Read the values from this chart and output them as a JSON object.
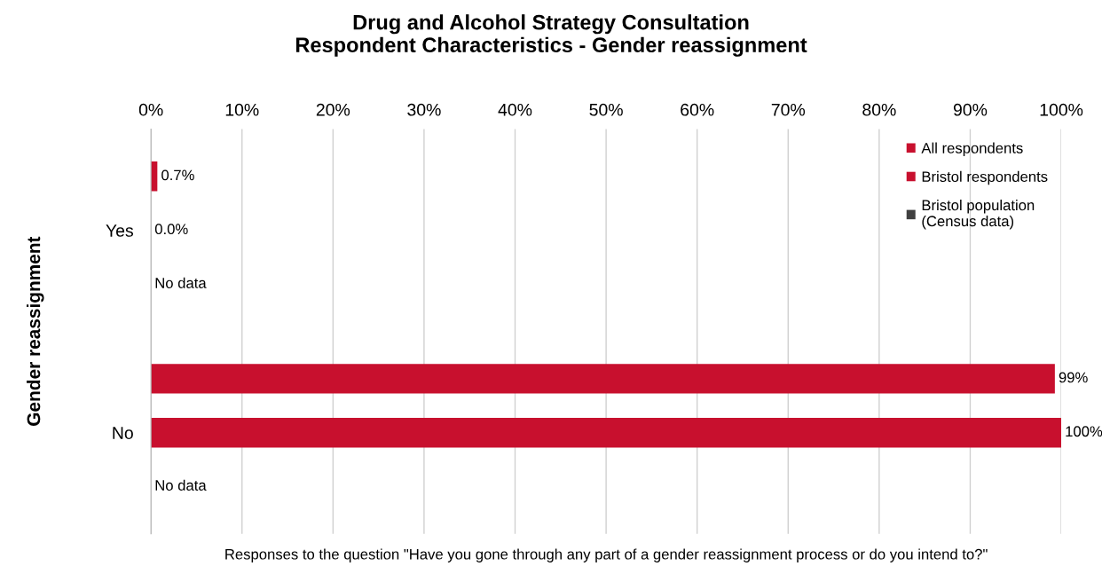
{
  "chart_data": {
    "type": "bar",
    "orientation": "horizontal",
    "title": "Drug and Alcohol Strategy Consultation\nRespondent Characteristics - Gender reassignment",
    "ylabel": "Gender reassignment",
    "xlabel": "Responses to the question \"Have you gone through any part of a gender reassignment process or do you intend to?\"",
    "categories": [
      "Yes",
      "No"
    ],
    "series": [
      {
        "name": "All respondents",
        "color": "#c8102e",
        "values": [
          0.7,
          99.3
        ],
        "value_labels": [
          "0.7%",
          "99%"
        ]
      },
      {
        "name": "Bristol respondents",
        "color": "#c8102e",
        "values": [
          0.0,
          100
        ],
        "value_labels": [
          "0.0%",
          "100%"
        ]
      },
      {
        "name": "Bristol population\n(Census data)",
        "color": "#404040",
        "values": [
          null,
          null
        ],
        "value_labels": [
          "No data",
          "No data"
        ]
      }
    ],
    "xlim": [
      0,
      100
    ],
    "xticks": [
      {
        "value": 0,
        "label": "0%"
      },
      {
        "value": 10,
        "label": "10%"
      },
      {
        "value": 20,
        "label": "20%"
      },
      {
        "value": 30,
        "label": "30%"
      },
      {
        "value": 40,
        "label": "40%"
      },
      {
        "value": 50,
        "label": "50%"
      },
      {
        "value": 60,
        "label": "60%"
      },
      {
        "value": 70,
        "label": "70%"
      },
      {
        "value": 80,
        "label": "80%"
      },
      {
        "value": 90,
        "label": "90%"
      },
      {
        "value": 100,
        "label": "100%"
      }
    ],
    "grid": "x",
    "legend": "top right"
  }
}
